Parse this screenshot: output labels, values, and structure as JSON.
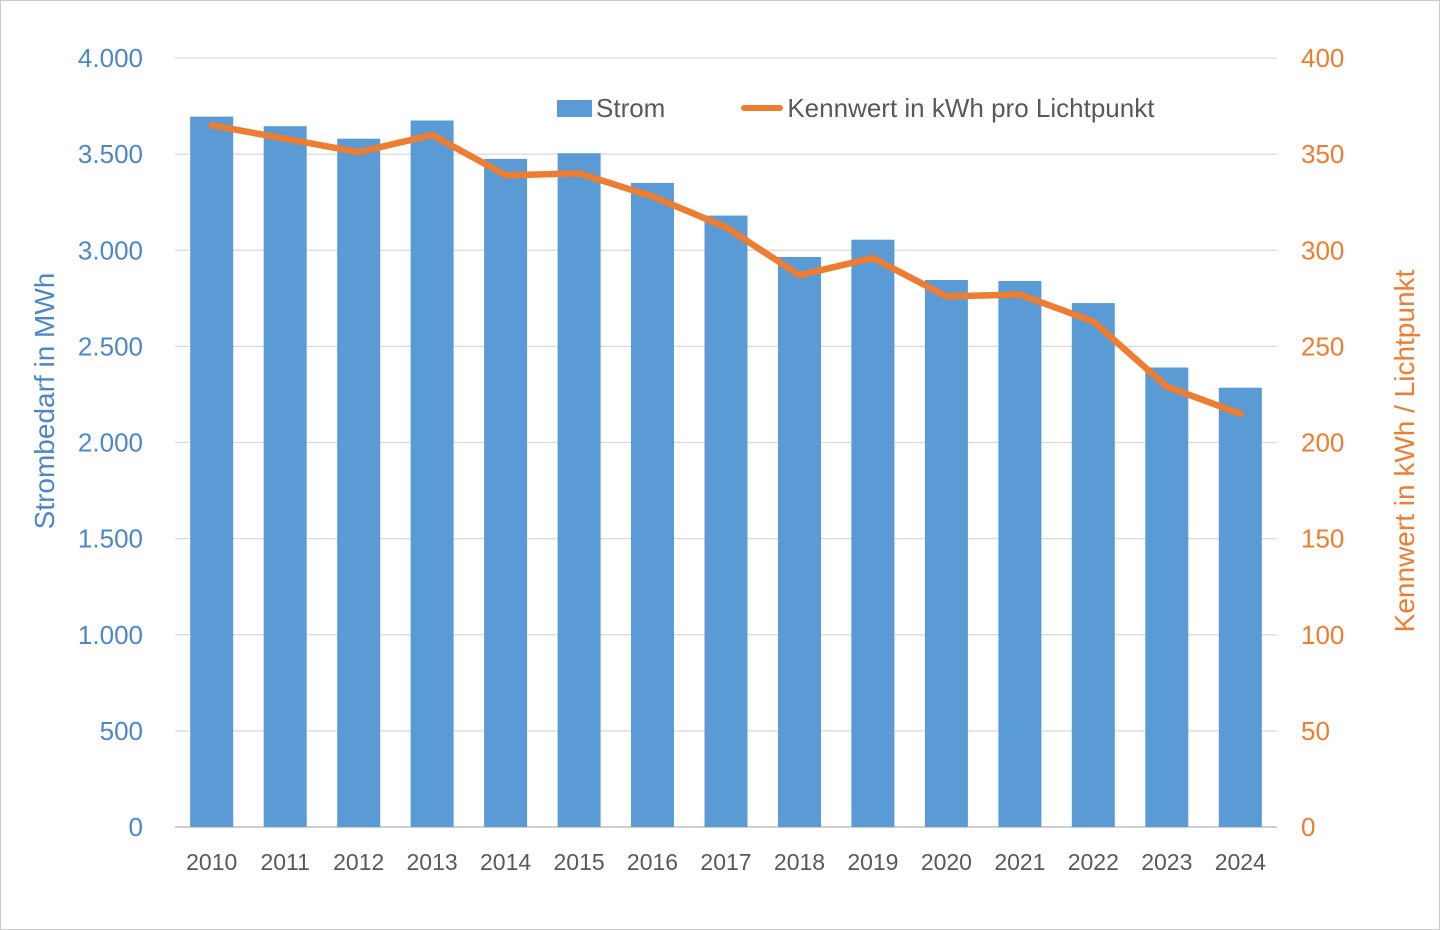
{
  "chart_data": {
    "type": "bar+line combo",
    "categories": [
      "2010",
      "2011",
      "2012",
      "2013",
      "2014",
      "2015",
      "2016",
      "2017",
      "2018",
      "2019",
      "2020",
      "2021",
      "2022",
      "2023",
      "2024"
    ],
    "series": [
      {
        "name": "Strom",
        "type": "bar",
        "axis": "left",
        "color": "#5b9bd5",
        "values": [
          3695,
          3645,
          3580,
          3675,
          3475,
          3505,
          3350,
          3180,
          2965,
          3055,
          2845,
          2840,
          2725,
          2390,
          2285
        ]
      },
      {
        "name": "Kennwert in kWh pro Lichtpunkt",
        "type": "line",
        "axis": "right",
        "color": "#ed7d31",
        "values": [
          365,
          358,
          351,
          360,
          339,
          340,
          328,
          312,
          287,
          296,
          276,
          277,
          263,
          229,
          215
        ]
      }
    ],
    "left_axis": {
      "title": "Strombedarf in MWh",
      "min": 0,
      "max": 4000,
      "step": 500,
      "tick_labels": [
        "0",
        "500",
        "1.000",
        "1.500",
        "2.000",
        "2.500",
        "3.000",
        "3.500",
        "4.000"
      ]
    },
    "right_axis": {
      "title": "Kennwert in kWh / Lichtpunkt",
      "min": 0,
      "max": 400,
      "step": 50,
      "tick_labels": [
        "0",
        "50",
        "100",
        "150",
        "200",
        "250",
        "300",
        "350",
        "400"
      ]
    },
    "grid": true,
    "legend_position": "top",
    "colors": {
      "gridline": "#d9d9d9",
      "axis_line": "#bfbfbf",
      "x_label_text": "#595959",
      "left_text": "#4e87c5",
      "right_text": "#ed7d31"
    }
  }
}
